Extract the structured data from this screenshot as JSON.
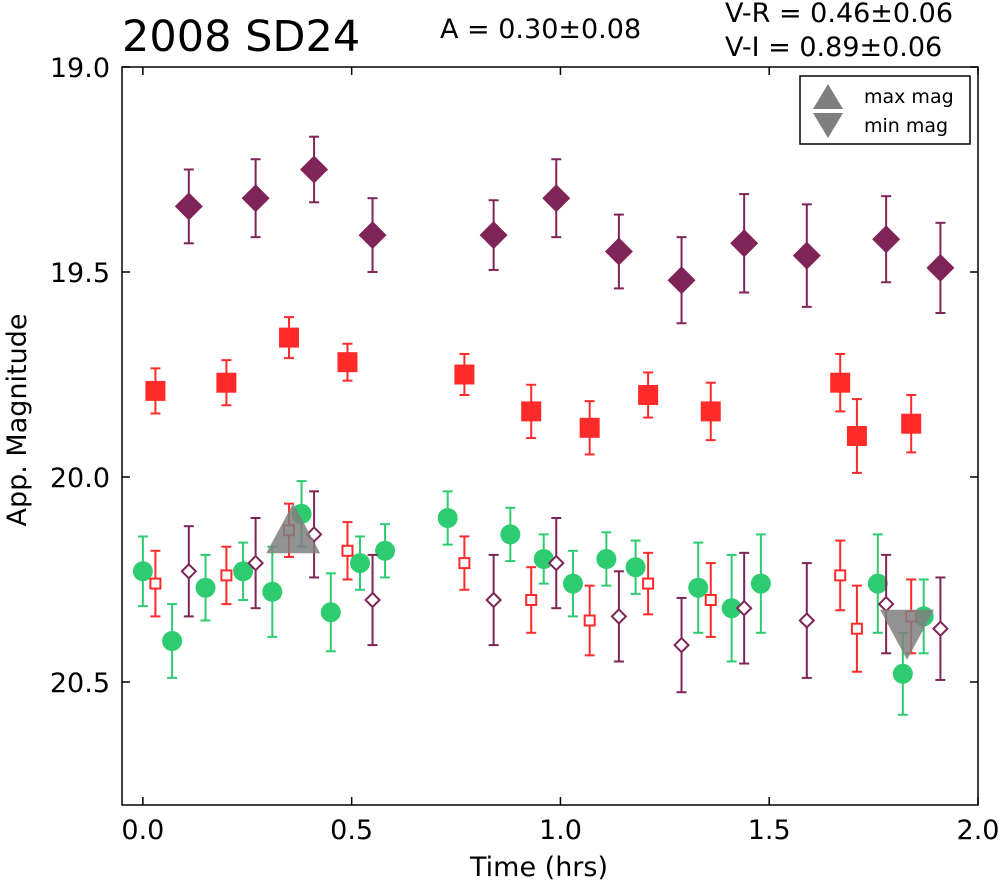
{
  "header": {
    "title": "2008 SD24",
    "amplitude": "A  = 0.30±0.08",
    "color_vr": "V-R = 0.46±0.06",
    "color_vi": "V-I  = 0.89±0.06"
  },
  "chart_data": {
    "type": "scatter",
    "xlabel": "Time (hrs)",
    "ylabel": "App. Magnitude",
    "xlim": [
      -0.05,
      2.0
    ],
    "ylim": [
      20.8,
      19.0
    ],
    "y_inverted": true,
    "x_ticks": [
      0.0,
      0.5,
      1.0,
      1.5,
      2.0
    ],
    "x_tick_labels": [
      "0.0",
      "0.5",
      "1.0",
      "1.5",
      "2.0"
    ],
    "y_ticks": [
      19.0,
      19.5,
      20.0,
      20.5
    ],
    "y_tick_labels": [
      "19.0",
      "19.5",
      "20.0",
      "20.5"
    ],
    "grid": false,
    "legend": {
      "placement": "top-right",
      "entries": [
        {
          "label": "max mag",
          "marker": "triangle-up",
          "color": "#7f7f7f"
        },
        {
          "label": "min mag",
          "marker": "triangle-down",
          "color": "#7f7f7f"
        }
      ]
    },
    "series": [
      {
        "marker": "diamond-filled",
        "color": "#7f2457",
        "points": [
          {
            "x": 0.11,
            "y": 19.34,
            "err": 0.09
          },
          {
            "x": 0.27,
            "y": 19.32,
            "err": 0.095
          },
          {
            "x": 0.41,
            "y": 19.25,
            "err": 0.08
          },
          {
            "x": 0.55,
            "y": 19.41,
            "err": 0.09
          },
          {
            "x": 0.84,
            "y": 19.41,
            "err": 0.085
          },
          {
            "x": 0.99,
            "y": 19.32,
            "err": 0.095
          },
          {
            "x": 1.14,
            "y": 19.45,
            "err": 0.09
          },
          {
            "x": 1.29,
            "y": 19.52,
            "err": 0.105
          },
          {
            "x": 1.44,
            "y": 19.43,
            "err": 0.12
          },
          {
            "x": 1.59,
            "y": 19.46,
            "err": 0.125
          },
          {
            "x": 1.78,
            "y": 19.42,
            "err": 0.105
          },
          {
            "x": 1.91,
            "y": 19.49,
            "err": 0.11
          }
        ]
      },
      {
        "marker": "square-filled",
        "color": "#ff2b2b",
        "points": [
          {
            "x": 0.03,
            "y": 19.79,
            "err": 0.055
          },
          {
            "x": 0.2,
            "y": 19.77,
            "err": 0.055
          },
          {
            "x": 0.35,
            "y": 19.66,
            "err": 0.05
          },
          {
            "x": 0.49,
            "y": 19.72,
            "err": 0.045
          },
          {
            "x": 0.77,
            "y": 19.75,
            "err": 0.05
          },
          {
            "x": 0.93,
            "y": 19.84,
            "err": 0.065
          },
          {
            "x": 1.07,
            "y": 19.88,
            "err": 0.065
          },
          {
            "x": 1.21,
            "y": 19.8,
            "err": 0.055
          },
          {
            "x": 1.36,
            "y": 19.84,
            "err": 0.07
          },
          {
            "x": 1.67,
            "y": 19.77,
            "err": 0.07
          },
          {
            "x": 1.71,
            "y": 19.9,
            "err": 0.09
          },
          {
            "x": 1.84,
            "y": 19.87,
            "err": 0.07
          }
        ]
      },
      {
        "marker": "circle-filled",
        "color": "#2ecc71",
        "points": [
          {
            "x": 0.0,
            "y": 20.23,
            "err": 0.085
          },
          {
            "x": 0.07,
            "y": 20.4,
            "err": 0.09
          },
          {
            "x": 0.15,
            "y": 20.27,
            "err": 0.08
          },
          {
            "x": 0.24,
            "y": 20.23,
            "err": 0.07
          },
          {
            "x": 0.31,
            "y": 20.28,
            "err": 0.11
          },
          {
            "x": 0.38,
            "y": 20.09,
            "err": 0.08
          },
          {
            "x": 0.45,
            "y": 20.33,
            "err": 0.095
          },
          {
            "x": 0.52,
            "y": 20.21,
            "err": 0.065
          },
          {
            "x": 0.58,
            "y": 20.18,
            "err": 0.065
          },
          {
            "x": 0.73,
            "y": 20.1,
            "err": 0.065
          },
          {
            "x": 0.88,
            "y": 20.14,
            "err": 0.065
          },
          {
            "x": 0.96,
            "y": 20.2,
            "err": 0.06
          },
          {
            "x": 1.03,
            "y": 20.26,
            "err": 0.08
          },
          {
            "x": 1.11,
            "y": 20.2,
            "err": 0.065
          },
          {
            "x": 1.18,
            "y": 20.22,
            "err": 0.065
          },
          {
            "x": 1.33,
            "y": 20.27,
            "err": 0.11
          },
          {
            "x": 1.41,
            "y": 20.32,
            "err": 0.13
          },
          {
            "x": 1.48,
            "y": 20.26,
            "err": 0.12
          },
          {
            "x": 1.76,
            "y": 20.26,
            "err": 0.12
          },
          {
            "x": 1.82,
            "y": 20.48,
            "err": 0.1
          },
          {
            "x": 1.87,
            "y": 20.34,
            "err": 0.09
          }
        ]
      },
      {
        "marker": "square-open",
        "color": "#ff2b2b",
        "points": [
          {
            "x": 0.03,
            "y": 20.26,
            "err": 0.08
          },
          {
            "x": 0.2,
            "y": 20.24,
            "err": 0.07
          },
          {
            "x": 0.35,
            "y": 20.13,
            "err": 0.065
          },
          {
            "x": 0.49,
            "y": 20.18,
            "err": 0.07
          },
          {
            "x": 0.77,
            "y": 20.21,
            "err": 0.065
          },
          {
            "x": 0.93,
            "y": 20.3,
            "err": 0.08
          },
          {
            "x": 1.07,
            "y": 20.35,
            "err": 0.085
          },
          {
            "x": 1.21,
            "y": 20.26,
            "err": 0.075
          },
          {
            "x": 1.36,
            "y": 20.3,
            "err": 0.09
          },
          {
            "x": 1.67,
            "y": 20.24,
            "err": 0.085
          },
          {
            "x": 1.71,
            "y": 20.37,
            "err": 0.105
          },
          {
            "x": 1.84,
            "y": 20.34,
            "err": 0.09
          }
        ]
      },
      {
        "marker": "diamond-open",
        "color": "#7f2457",
        "points": [
          {
            "x": 0.11,
            "y": 20.23,
            "err": 0.11
          },
          {
            "x": 0.27,
            "y": 20.21,
            "err": 0.11
          },
          {
            "x": 0.41,
            "y": 20.14,
            "err": 0.105
          },
          {
            "x": 0.55,
            "y": 20.3,
            "err": 0.11
          },
          {
            "x": 0.84,
            "y": 20.3,
            "err": 0.11
          },
          {
            "x": 0.99,
            "y": 20.21,
            "err": 0.11
          },
          {
            "x": 1.14,
            "y": 20.34,
            "err": 0.11
          },
          {
            "x": 1.29,
            "y": 20.41,
            "err": 0.115
          },
          {
            "x": 1.44,
            "y": 20.32,
            "err": 0.135
          },
          {
            "x": 1.59,
            "y": 20.35,
            "err": 0.14
          },
          {
            "x": 1.78,
            "y": 20.31,
            "err": 0.12
          },
          {
            "x": 1.91,
            "y": 20.37,
            "err": 0.125
          }
        ]
      }
    ],
    "extrema_markers": [
      {
        "kind": "max",
        "x": 0.36,
        "y": 20.13,
        "color": "#7f7f7f"
      },
      {
        "kind": "min",
        "x": 1.83,
        "y": 20.38,
        "color": "#7f7f7f"
      }
    ]
  }
}
